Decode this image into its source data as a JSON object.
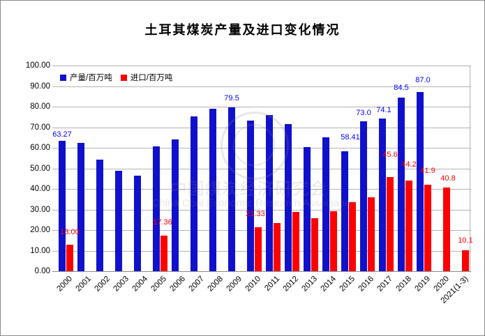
{
  "title": "土耳其煤炭产量及进口变化情况",
  "legend": {
    "items": [
      {
        "label": "产量/百万吨",
        "color": "#1111cc"
      },
      {
        "label": "进口/百万吨",
        "color": "#ff0000"
      }
    ],
    "position": "top-left-inside"
  },
  "watermark": {
    "line1": "中国煤炭经济研究会",
    "line2": "China Coal Economic Research Association"
  },
  "chart_data": {
    "type": "bar",
    "title": "土耳其煤炭产量及进口变化情况",
    "categories": [
      "2000",
      "2001",
      "2002",
      "2003",
      "2004",
      "2005",
      "2006",
      "2007",
      "2008",
      "2009",
      "2010",
      "2011",
      "2012",
      "2013",
      "2014",
      "2015",
      "2016",
      "2017",
      "2018",
      "2019",
      "2020",
      "2021(1-3)"
    ],
    "series": [
      {
        "name": "产量/百万吨",
        "color": "#1111cc",
        "label_color": "#0000ff",
        "values": [
          63.27,
          62.4,
          54.2,
          48.8,
          46.4,
          60.7,
          64.1,
          75.3,
          79.1,
          79.5,
          73.3,
          76.0,
          71.6,
          60.4,
          65.1,
          58.41,
          73.0,
          74.1,
          84.5,
          87.0,
          null,
          null
        ],
        "data_labels": [
          {
            "i": 0,
            "text": "63.27",
            "dy": 3,
            "dx": 0
          },
          {
            "i": 9,
            "text": "79.5",
            "dy": 7,
            "dx": 0
          },
          {
            "i": 15,
            "text": "58.41",
            "dy": 14,
            "dx": 8
          },
          {
            "i": 16,
            "text": "73.0",
            "dy": 6,
            "dx": 0
          },
          {
            "i": 17,
            "text": "74.1",
            "dy": 6,
            "dx": 2
          },
          {
            "i": 18,
            "text": "84.5",
            "dy": 8,
            "dx": 0
          },
          {
            "i": 19,
            "text": "87.0",
            "dy": 11,
            "dx": 4
          }
        ]
      },
      {
        "name": "进口/百万吨",
        "color": "#ff0000",
        "label_color": "#ff0000",
        "values": [
          13.0,
          null,
          null,
          null,
          null,
          17.36,
          null,
          null,
          null,
          null,
          21.33,
          23.5,
          28.8,
          25.8,
          29.0,
          33.7,
          36.0,
          45.6,
          44.2,
          41.9,
          40.8,
          10.1
        ],
        "data_labels": [
          {
            "i": 0,
            "text": "13.00",
            "dy": 12,
            "dx": 0
          },
          {
            "i": 5,
            "text": "17.36",
            "dy": 13,
            "dx": -2
          },
          {
            "i": 10,
            "text": "21.33",
            "dy": 13,
            "dx": -4
          },
          {
            "i": 17,
            "text": "45.6",
            "dy": 26,
            "dx": 0
          },
          {
            "i": 18,
            "text": "44.2",
            "dy": 17,
            "dx": 0
          },
          {
            "i": 19,
            "text": "41.9",
            "dy": 14,
            "dx": 0
          },
          {
            "i": 20,
            "text": "40.8",
            "dy": 7,
            "dx": 2
          },
          {
            "i": 21,
            "text": "10.1",
            "dy": 8,
            "dx": 0
          }
        ]
      }
    ],
    "ylim": [
      0,
      100
    ],
    "ytick_step": 10,
    "ytick_labels": [
      "0.00",
      "10.00",
      "20.00",
      "30.00",
      "40.00",
      "50.00",
      "60.00",
      "70.00",
      "80.00",
      "90.00",
      "100.00"
    ],
    "xlabel": "",
    "ylabel": "",
    "grid": true,
    "legend_position": "top-left-inside"
  }
}
